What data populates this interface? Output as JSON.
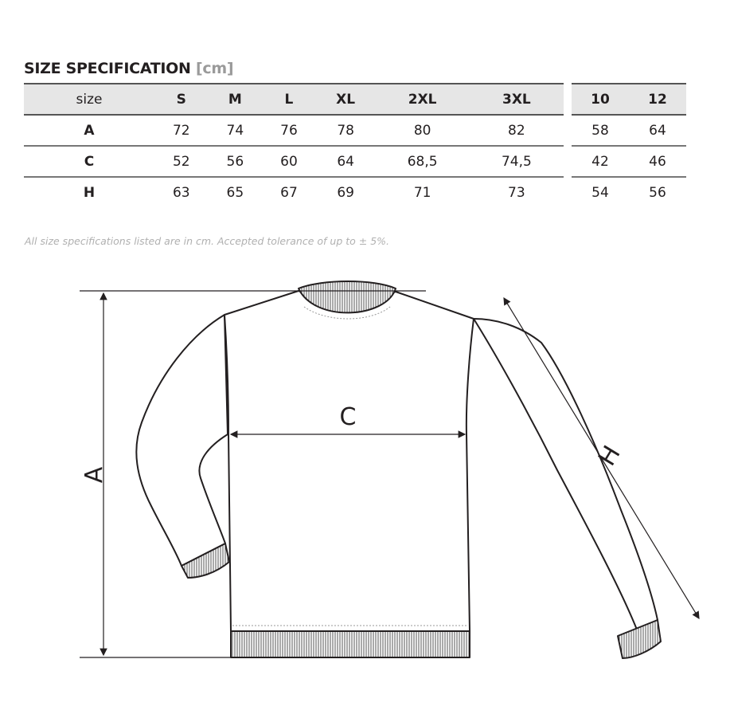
{
  "title": {
    "main": "SIZE SPECIFICATION",
    "unit": "[cm]"
  },
  "table_adult": {
    "headers": [
      "size",
      "S",
      "M",
      "L",
      "XL",
      "2XL",
      "3XL"
    ],
    "rows": [
      [
        "A",
        "72",
        "74",
        "76",
        "78",
        "80",
        "82"
      ],
      [
        "C",
        "52",
        "56",
        "60",
        "64",
        "68,5",
        "74,5"
      ],
      [
        "H",
        "63",
        "65",
        "67",
        "69",
        "71",
        "73"
      ]
    ]
  },
  "table_kids": {
    "headers": [
      "10",
      "12"
    ],
    "rows": [
      [
        "58",
        "64"
      ],
      [
        "42",
        "46"
      ],
      [
        "54",
        "56"
      ]
    ]
  },
  "note": "All size specifications listed are in cm. Accepted tolerance of up to ± 5%.",
  "diagram": {
    "label_a": "A",
    "label_c": "C",
    "label_h": "H"
  }
}
